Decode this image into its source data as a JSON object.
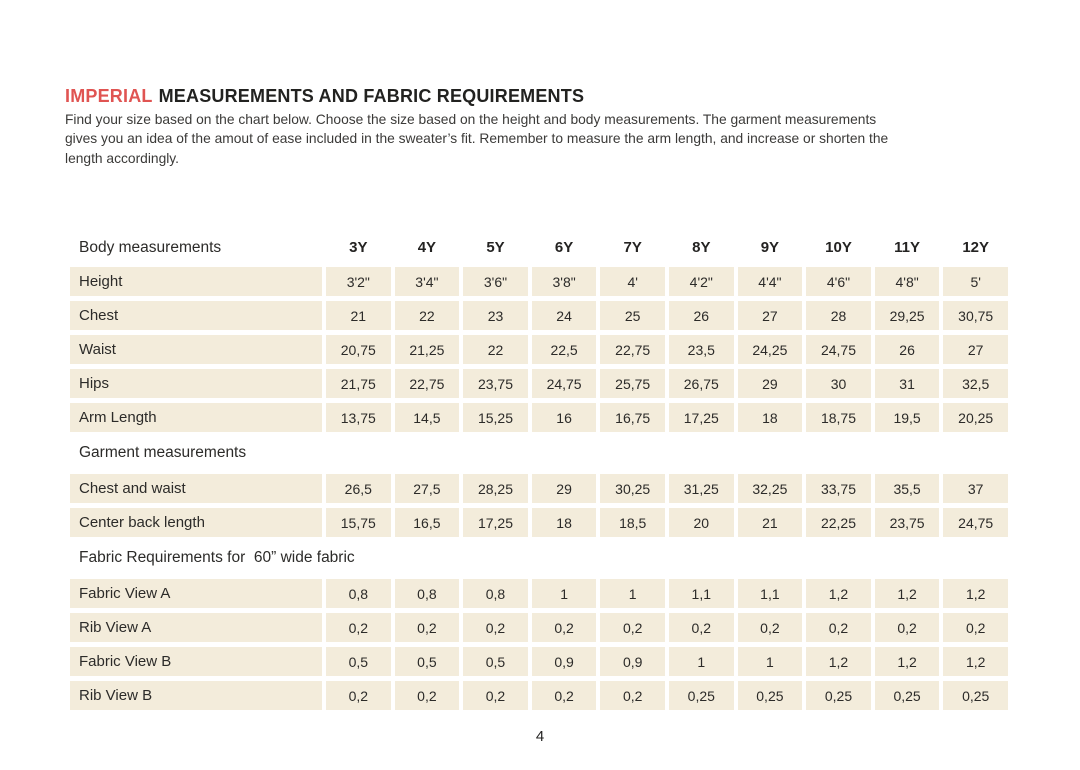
{
  "page": {
    "title": {
      "highlight": "IMPERIAL",
      "rest": "MEASUREMENTS AND FABRIC REQUIREMENTS"
    },
    "intro_lines": [
      "Find your size based on the chart below. Choose the size based on the height and body measurements. The garment measurements",
      "gives you an idea of the amout of ease included in the sweater’s fit. Remember to measure the arm length, and increase or shorten the",
      "length accordingly."
    ],
    "page_number": "4"
  },
  "colors": {
    "accent": "#e05452",
    "cell_background": "#f3ecdb",
    "text": "#2c2b29"
  },
  "table": {
    "header_row": {
      "label": "Body measurements",
      "sizes": [
        "3Y",
        "4Y",
        "5Y",
        "6Y",
        "7Y",
        "8Y",
        "9Y",
        "10Y",
        "11Y",
        "12Y"
      ]
    },
    "sections": [
      {
        "header": null,
        "rows": [
          {
            "label": "Height",
            "values": [
              "3'2\"",
              "3'4\"",
              "3'6\"",
              "3'8\"",
              "4'",
              "4'2\"",
              "4'4\"",
              "4'6\"",
              "4'8\"",
              "5'"
            ]
          },
          {
            "label": "Chest",
            "values": [
              "21",
              "22",
              "23",
              "24",
              "25",
              "26",
              "27",
              "28",
              "29,25",
              "30,75"
            ]
          },
          {
            "label": "Waist",
            "values": [
              "20,75",
              "21,25",
              "22",
              "22,5",
              "22,75",
              "23,5",
              "24,25",
              "24,75",
              "26",
              "27"
            ]
          },
          {
            "label": "Hips",
            "values": [
              "21,75",
              "22,75",
              "23,75",
              "24,75",
              "25,75",
              "26,75",
              "29",
              "30",
              "31",
              "32,5"
            ]
          },
          {
            "label": "Arm Length",
            "values": [
              "13,75",
              "14,5",
              "15,25",
              "16",
              "16,75",
              "17,25",
              "18",
              "18,75",
              "19,5",
              "20,25"
            ]
          }
        ]
      },
      {
        "header": "Garment measurements",
        "rows": [
          {
            "label": "Chest and waist",
            "values": [
              "26,5",
              "27,5",
              "28,25",
              "29",
              "30,25",
              "31,25",
              "32,25",
              "33,75",
              "35,5",
              "37"
            ]
          },
          {
            "label": "Center back length",
            "values": [
              "15,75",
              "16,5",
              "17,25",
              "18",
              "18,5",
              "20",
              "21",
              "22,25",
              "23,75",
              "24,75"
            ]
          }
        ]
      },
      {
        "header": "Fabric Requirements for  60” wide fabric",
        "rows": [
          {
            "label": "Fabric View A",
            "values": [
              "0,8",
              "0,8",
              "0,8",
              "1",
              "1",
              "1,1",
              "1,1",
              "1,2",
              "1,2",
              "1,2"
            ]
          },
          {
            "label": "Rib View A",
            "values": [
              "0,2",
              "0,2",
              "0,2",
              "0,2",
              "0,2",
              "0,2",
              "0,2",
              "0,2",
              "0,2",
              "0,2"
            ]
          },
          {
            "label": "Fabric View B",
            "values": [
              "0,5",
              "0,5",
              "0,5",
              "0,9",
              "0,9",
              "1",
              "1",
              "1,2",
              "1,2",
              "1,2"
            ]
          },
          {
            "label": "Rib View B",
            "values": [
              "0,2",
              "0,2",
              "0,2",
              "0,2",
              "0,2",
              "0,25",
              "0,25",
              "0,25",
              "0,25",
              "0,25"
            ]
          }
        ]
      }
    ]
  }
}
